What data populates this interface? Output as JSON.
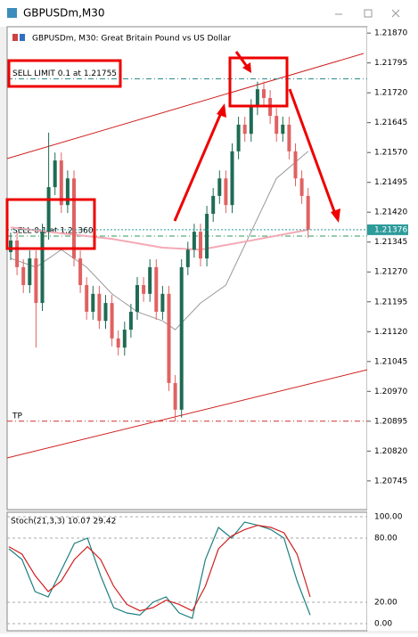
{
  "window": {
    "title": "GBPUSDm,M30"
  },
  "chart_data": [
    {
      "type": "candlestick",
      "title": "GBPUSDm, M30:  Great Britain Pound vs US Dollar",
      "open": [
        1.2132,
        1.21349,
        1.21282,
        1.21237,
        1.21304,
        1.21192,
        1.21371,
        1.21483,
        1.2155,
        1.21438,
        1.21505,
        1.21304,
        1.21237,
        1.2117,
        1.21215,
        1.21147,
        1.21192,
        1.21103,
        1.2108,
        1.21125,
        1.2117,
        1.21237,
        1.21215,
        1.21282,
        1.2117,
        1.21215,
        1.20991,
        1.20924,
        1.21282,
        1.21326,
        1.21371,
        1.21304,
        1.21416,
        1.21461,
        1.21505,
        1.21438,
        1.21573,
        1.2164,
        1.21617,
        1.21684,
        1.21729,
        1.21707,
        1.21662,
        1.21617,
        1.2164,
        1.21573,
        1.21505,
        1.21461
      ],
      "high": [
        1.21369,
        1.21369,
        1.21302,
        1.21324,
        1.21324,
        1.21391,
        1.2162,
        1.2157,
        1.2157,
        1.21525,
        1.21525,
        1.21324,
        1.21257,
        1.21235,
        1.21235,
        1.21212,
        1.21212,
        1.21123,
        1.21145,
        1.2119,
        1.21257,
        1.21257,
        1.21302,
        1.21302,
        1.21235,
        1.21235,
        1.21011,
        1.21302,
        1.21346,
        1.21391,
        1.21391,
        1.21436,
        1.21481,
        1.21525,
        1.21525,
        1.21593,
        1.2166,
        1.2166,
        1.21704,
        1.21748,
        1.21749,
        1.21727,
        1.21682,
        1.2166,
        1.2166,
        1.21593,
        1.21525,
        1.21481
      ],
      "low": [
        1.213,
        1.21262,
        1.21217,
        1.21217,
        1.2108,
        1.21172,
        1.21351,
        1.21463,
        1.21418,
        1.21418,
        1.21284,
        1.21217,
        1.2115,
        1.2115,
        1.21127,
        1.21127,
        1.21083,
        1.2106,
        1.2106,
        1.21105,
        1.2115,
        1.21195,
        1.21195,
        1.2115,
        1.2115,
        1.20971,
        1.20895,
        1.20904,
        1.21262,
        1.21306,
        1.21284,
        1.21284,
        1.21396,
        1.21441,
        1.21418,
        1.21418,
        1.21553,
        1.21597,
        1.21597,
        1.21664,
        1.21687,
        1.21642,
        1.21597,
        1.21597,
        1.21553,
        1.21485,
        1.21441,
        1.21356
      ],
      "close": [
        1.21349,
        1.21282,
        1.21237,
        1.21304,
        1.21192,
        1.21371,
        1.21483,
        1.2155,
        1.21438,
        1.21505,
        1.21304,
        1.21237,
        1.2117,
        1.21215,
        1.21147,
        1.21192,
        1.21103,
        1.2108,
        1.21125,
        1.2117,
        1.21237,
        1.21215,
        1.21282,
        1.2117,
        1.21215,
        1.20991,
        1.20924,
        1.21282,
        1.21326,
        1.21371,
        1.21304,
        1.21416,
        1.21461,
        1.21505,
        1.21438,
        1.21573,
        1.2164,
        1.21617,
        1.21684,
        1.21729,
        1.21707,
        1.21662,
        1.21617,
        1.2164,
        1.21573,
        1.21505,
        1.21461,
        1.21376
      ],
      "up_color": "#1f6b55",
      "down_color": "#e06262",
      "lines": [
        {
          "color": "#9a9a9a",
          "x": [
            0,
            4,
            8,
            12,
            16,
            20,
            24,
            26,
            30,
            34,
            38,
            42,
            47
          ],
          "values": [
            1.21304,
            1.21282,
            1.21326,
            1.21282,
            1.21215,
            1.2117,
            1.21147,
            1.21125,
            1.21192,
            1.21237,
            1.21371,
            1.21505,
            1.21573
          ]
        },
        {
          "color": "#f4a9b4",
          "x": [
            0,
            8,
            16,
            24,
            30,
            38,
            47
          ],
          "values": [
            1.21382,
            1.21367,
            1.21353,
            1.21331,
            1.21326,
            1.21349,
            1.21376
          ]
        }
      ],
      "levels": [
        {
          "label": "SELL LIMIT 0.1 at 1.21755",
          "value": 1.21755,
          "color": "#2e8b8b"
        },
        {
          "label": "SELL 0.1 at 1.21360",
          "value": 1.2136,
          "color": "#2e9b5a"
        },
        {
          "label": "TP",
          "value": 1.20895,
          "color": "#d03030"
        }
      ],
      "price_label": {
        "value": 1.21376,
        "label": "1.21376",
        "color": "#2e9b9b"
      },
      "ylim": [
        1.20673,
        1.21886
      ],
      "yticks": [
        {
          "value": 1.2187,
          "label": "1.21870"
        },
        {
          "value": 1.21795,
          "label": "1.21795"
        },
        {
          "value": 1.2172,
          "label": "1.21720"
        },
        {
          "value": 1.21645,
          "label": "1.21645"
        },
        {
          "value": 1.2157,
          "label": "1.21570"
        },
        {
          "value": 1.21495,
          "label": "1.21495"
        },
        {
          "value": 1.2142,
          "label": "1.21420"
        },
        {
          "value": 1.21345,
          "label": "1.21345"
        },
        {
          "value": 1.2127,
          "label": "1.21270"
        },
        {
          "value": 1.21195,
          "label": "1.21195"
        },
        {
          "value": 1.2112,
          "label": "1.21120"
        },
        {
          "value": 1.21045,
          "label": "1.21045"
        },
        {
          "value": 1.2097,
          "label": "1.20970"
        },
        {
          "value": 1.20895,
          "label": "1.20895"
        },
        {
          "value": 1.2082,
          "label": "1.20820"
        },
        {
          "value": 1.20745,
          "label": "1.20745"
        }
      ]
    },
    {
      "type": "line",
      "title": "Stoch(21,3,3) 10.07 29.42",
      "series": [
        {
          "color": "#1f7f7f",
          "values": [
            70,
            60,
            30,
            25,
            50,
            75,
            80,
            45,
            15,
            10,
            8,
            20,
            25,
            10,
            5,
            60,
            90,
            80,
            95,
            92,
            88,
            80,
            40,
            8
          ]
        },
        {
          "color": "#d02020",
          "values": [
            72,
            65,
            45,
            30,
            40,
            60,
            72,
            60,
            35,
            18,
            12,
            15,
            22,
            18,
            12,
            35,
            70,
            82,
            88,
            92,
            90,
            85,
            65,
            25
          ]
        }
      ],
      "ylim": [
        0,
        100
      ],
      "yticks": [
        {
          "value": 100,
          "label": "100.00"
        },
        {
          "value": 80,
          "label": "80.00"
        },
        {
          "value": 20,
          "label": "20.00"
        },
        {
          "value": 0,
          "label": "0.00"
        }
      ]
    }
  ]
}
